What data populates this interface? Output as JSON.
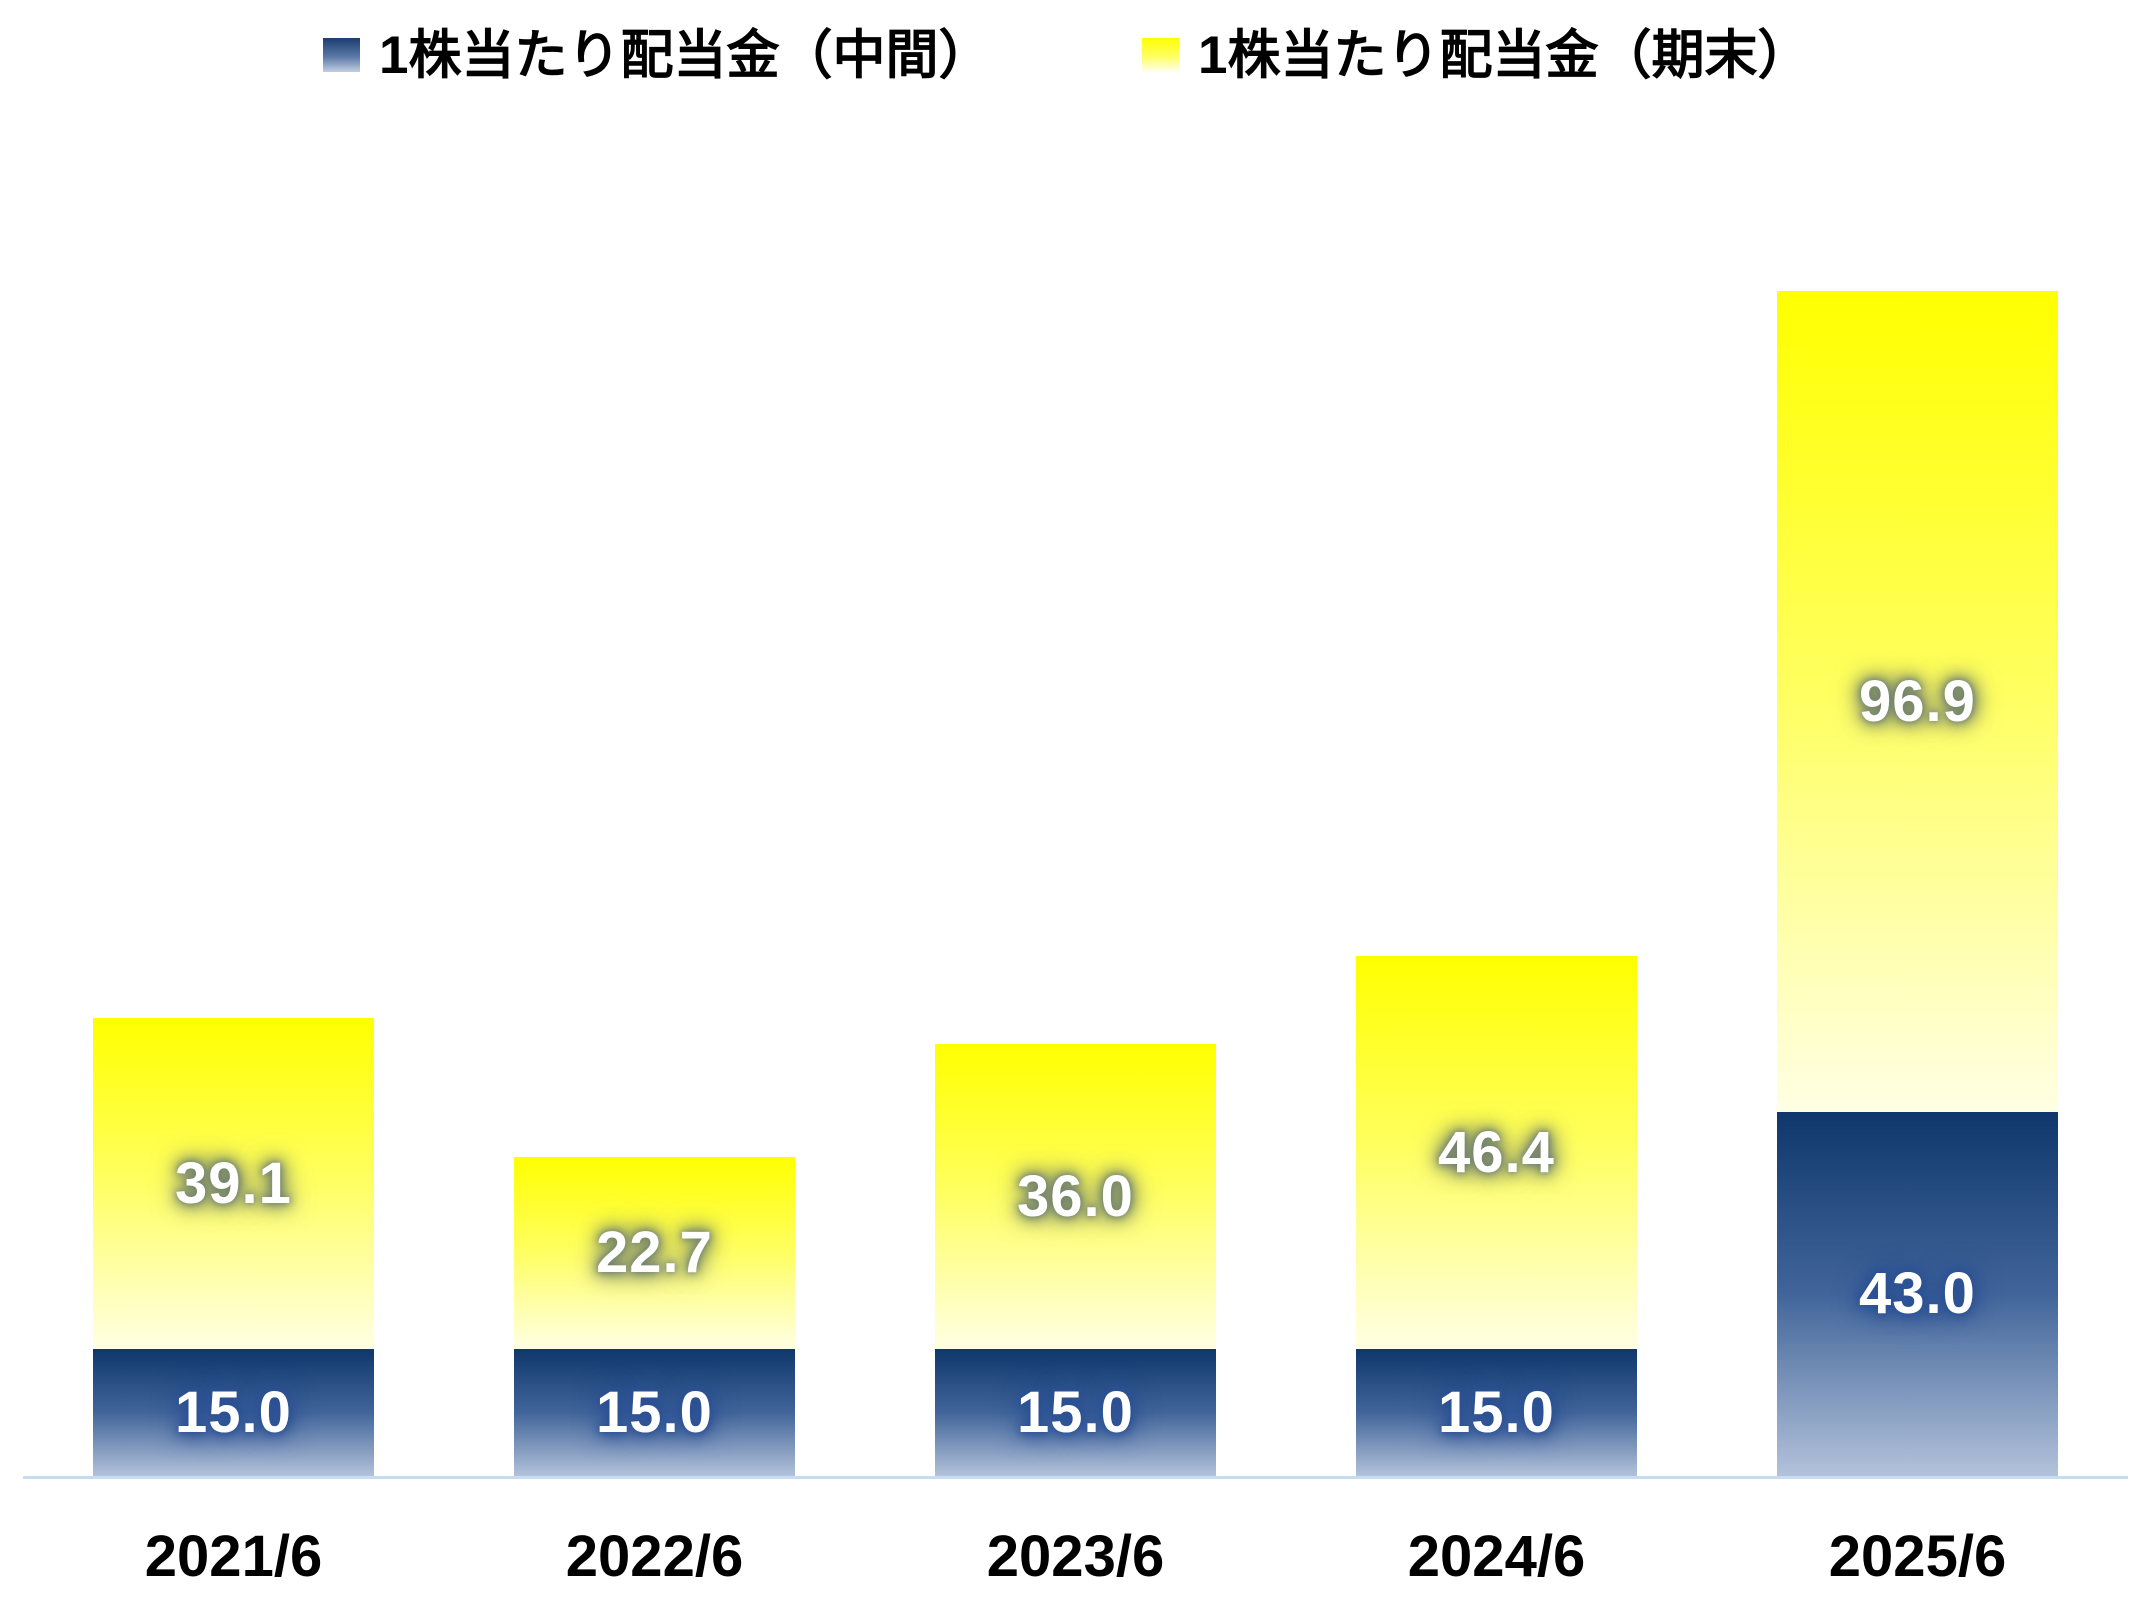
{
  "chart_data": {
    "type": "bar",
    "stacked": true,
    "title": "",
    "categories": [
      "2021/6",
      "2022/6",
      "2023/6",
      "2024/6",
      "2025/6"
    ],
    "series": [
      {
        "name": "1株当たり配当金（中間）",
        "values": [
          15.0,
          15.0,
          15.0,
          15.0,
          43.0
        ],
        "labels": [
          "15.0",
          "15.0",
          "15.0",
          "15.0",
          "43.0"
        ],
        "color_top": "#0F376C",
        "color_mid": "#41659A",
        "color_bottom": "#B3C2DA",
        "label_glow": "#2B5094"
      },
      {
        "name": "1株当たり配当金（期末）",
        "values": [
          39.1,
          22.7,
          36.0,
          46.4,
          96.9
        ],
        "labels": [
          "39.1",
          "22.7",
          "36.0",
          "46.4",
          "96.9"
        ],
        "color_top": "#FFFF00",
        "color_mid": "#FFFF63",
        "color_bottom": "#FFFFE4",
        "label_glow": "#6E7E6E"
      }
    ],
    "legend_position": "top",
    "grid": false,
    "ylim": [
      0,
      140
    ],
    "baseline_color": "#C6DDF1",
    "label_text_color": "#FFFFFF",
    "axis_text_color": "#000000"
  }
}
